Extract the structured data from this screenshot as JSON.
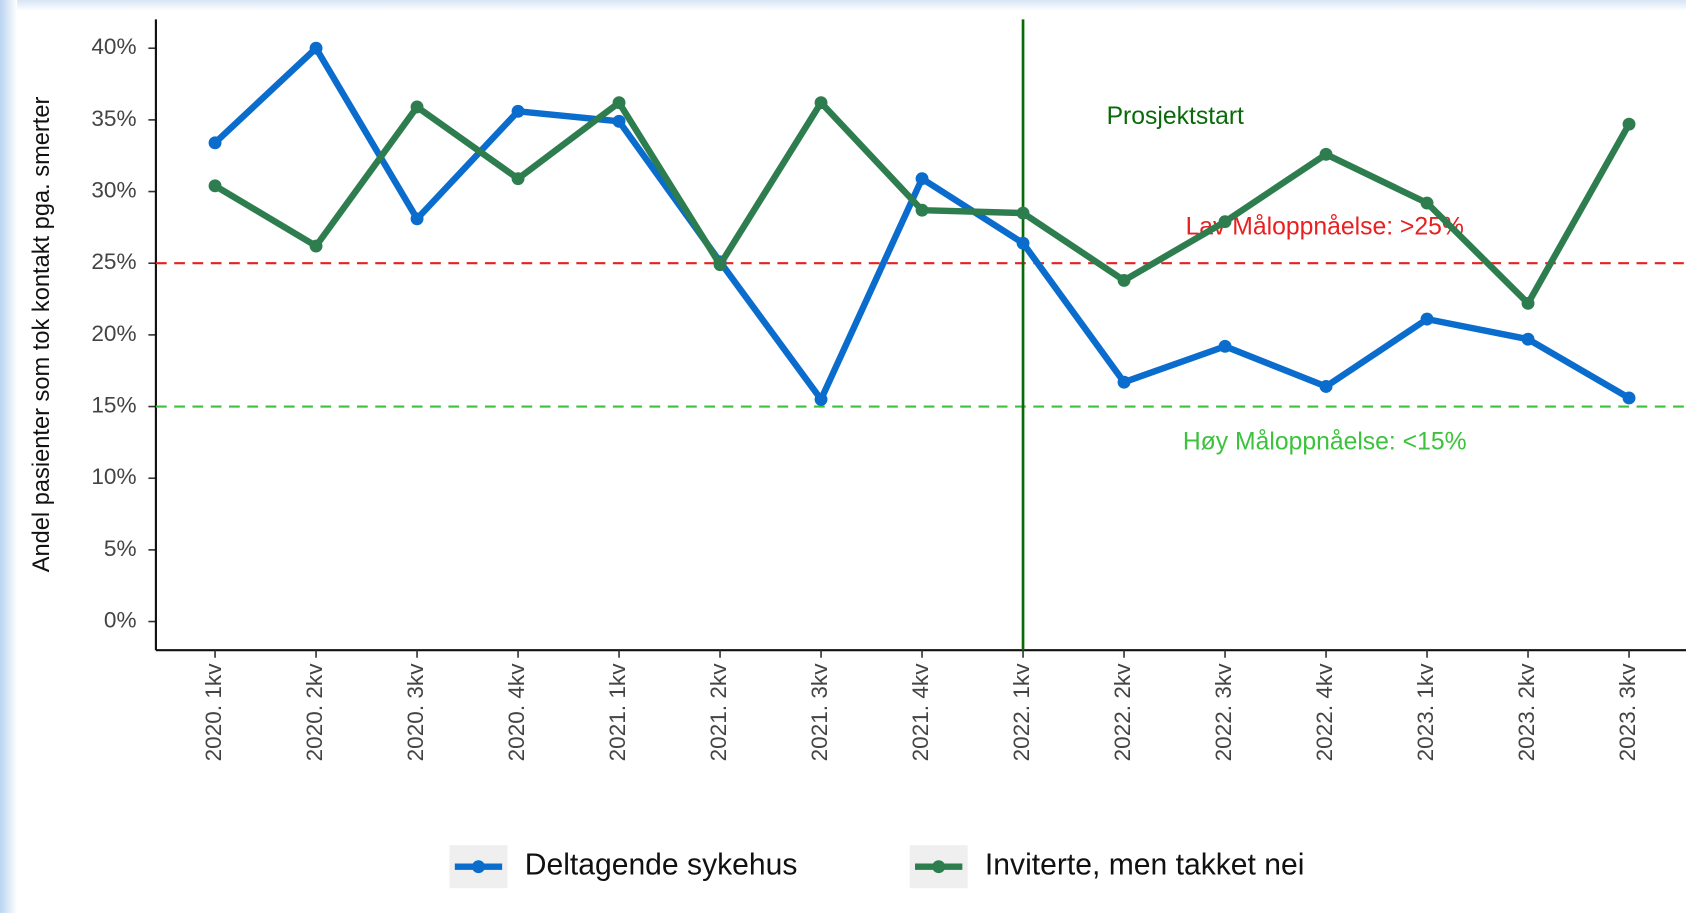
{
  "chart_data": {
    "type": "line",
    "ylabel": "Andel pasienter som tok kontakt pga. smerter",
    "categories": [
      "2020. 1kv",
      "2020. 2kv",
      "2020. 3kv",
      "2020. 4kv",
      "2021. 1kv",
      "2021. 2kv",
      "2021. 3kv",
      "2021. 4kv",
      "2022. 1kv",
      "2022. 2kv",
      "2022. 3kv",
      "2022. 4kv",
      "2023. 1kv",
      "2023. 2kv",
      "2023. 3kv"
    ],
    "series": [
      {
        "name": "Deltagende sykehus",
        "color": "#0a6ccc",
        "values": [
          33.4,
          40.0,
          28.1,
          35.6,
          34.9,
          25.1,
          15.5,
          30.9,
          26.4,
          16.7,
          19.2,
          16.4,
          21.1,
          19.7,
          15.6
        ]
      },
      {
        "name": "Inviterte, men takket nei",
        "color": "#2e7d4f",
        "values": [
          30.4,
          26.2,
          35.9,
          30.9,
          36.2,
          24.9,
          36.2,
          28.7,
          28.5,
          23.8,
          27.9,
          32.6,
          29.2,
          22.2,
          34.7
        ]
      }
    ],
    "ylim": [
      -2,
      42
    ],
    "yticks": [
      {
        "value": 0,
        "label": "0%"
      },
      {
        "value": 5,
        "label": "5%"
      },
      {
        "value": 10,
        "label": "10%"
      },
      {
        "value": 15,
        "label": "15%"
      },
      {
        "value": 20,
        "label": "20%"
      },
      {
        "value": 25,
        "label": "25%"
      },
      {
        "value": 30,
        "label": "30%"
      },
      {
        "value": 35,
        "label": "35%"
      },
      {
        "value": 40,
        "label": "40%"
      }
    ],
    "reference_lines": [
      {
        "value": 25,
        "color": "#e82020",
        "label": "Lav Måloppnåelse: >25%"
      },
      {
        "value": 15,
        "color": "#3cc23c",
        "label": "Høy Måloppnåelse: <15%"
      }
    ],
    "vline": {
      "x": "2022. 1kv",
      "color": "#0a6a0a",
      "label": "Prosjektstart"
    },
    "legend": "bottom"
  }
}
